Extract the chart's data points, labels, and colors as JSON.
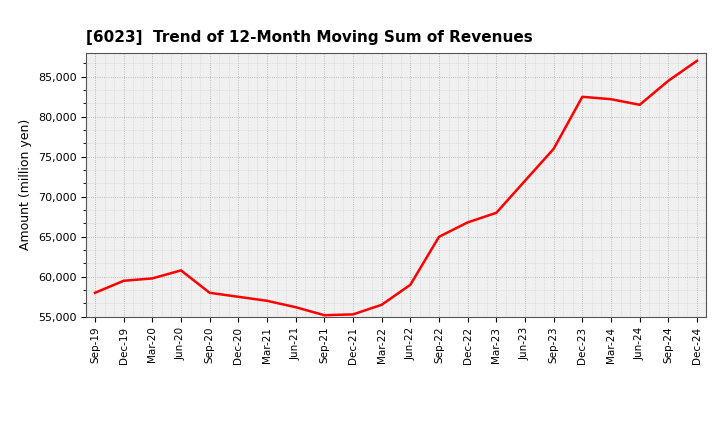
{
  "title": "[6023]  Trend of 12-Month Moving Sum of Revenues",
  "ylabel": "Amount (million yen)",
  "line_color": "#ff0000",
  "line_width": 1.8,
  "background_color": "#ffffff",
  "plot_bg_color": "#f0f0f0",
  "grid_color": "#999999",
  "ylim": [
    55000,
    88000
  ],
  "yticks": [
    55000,
    60000,
    65000,
    70000,
    75000,
    80000,
    85000
  ],
  "x_labels": [
    "Sep-19",
    "Dec-19",
    "Mar-20",
    "Jun-20",
    "Sep-20",
    "Dec-20",
    "Mar-21",
    "Jun-21",
    "Sep-21",
    "Dec-21",
    "Mar-22",
    "Jun-22",
    "Sep-22",
    "Dec-22",
    "Mar-23",
    "Jun-23",
    "Sep-23",
    "Dec-23",
    "Mar-24",
    "Jun-24",
    "Sep-24",
    "Dec-24"
  ],
  "values": [
    58000,
    59500,
    59800,
    60800,
    58000,
    57500,
    57000,
    56200,
    55200,
    55300,
    56500,
    59000,
    65000,
    66800,
    68000,
    72000,
    76000,
    82500,
    82200,
    81500,
    84500,
    87000
  ]
}
